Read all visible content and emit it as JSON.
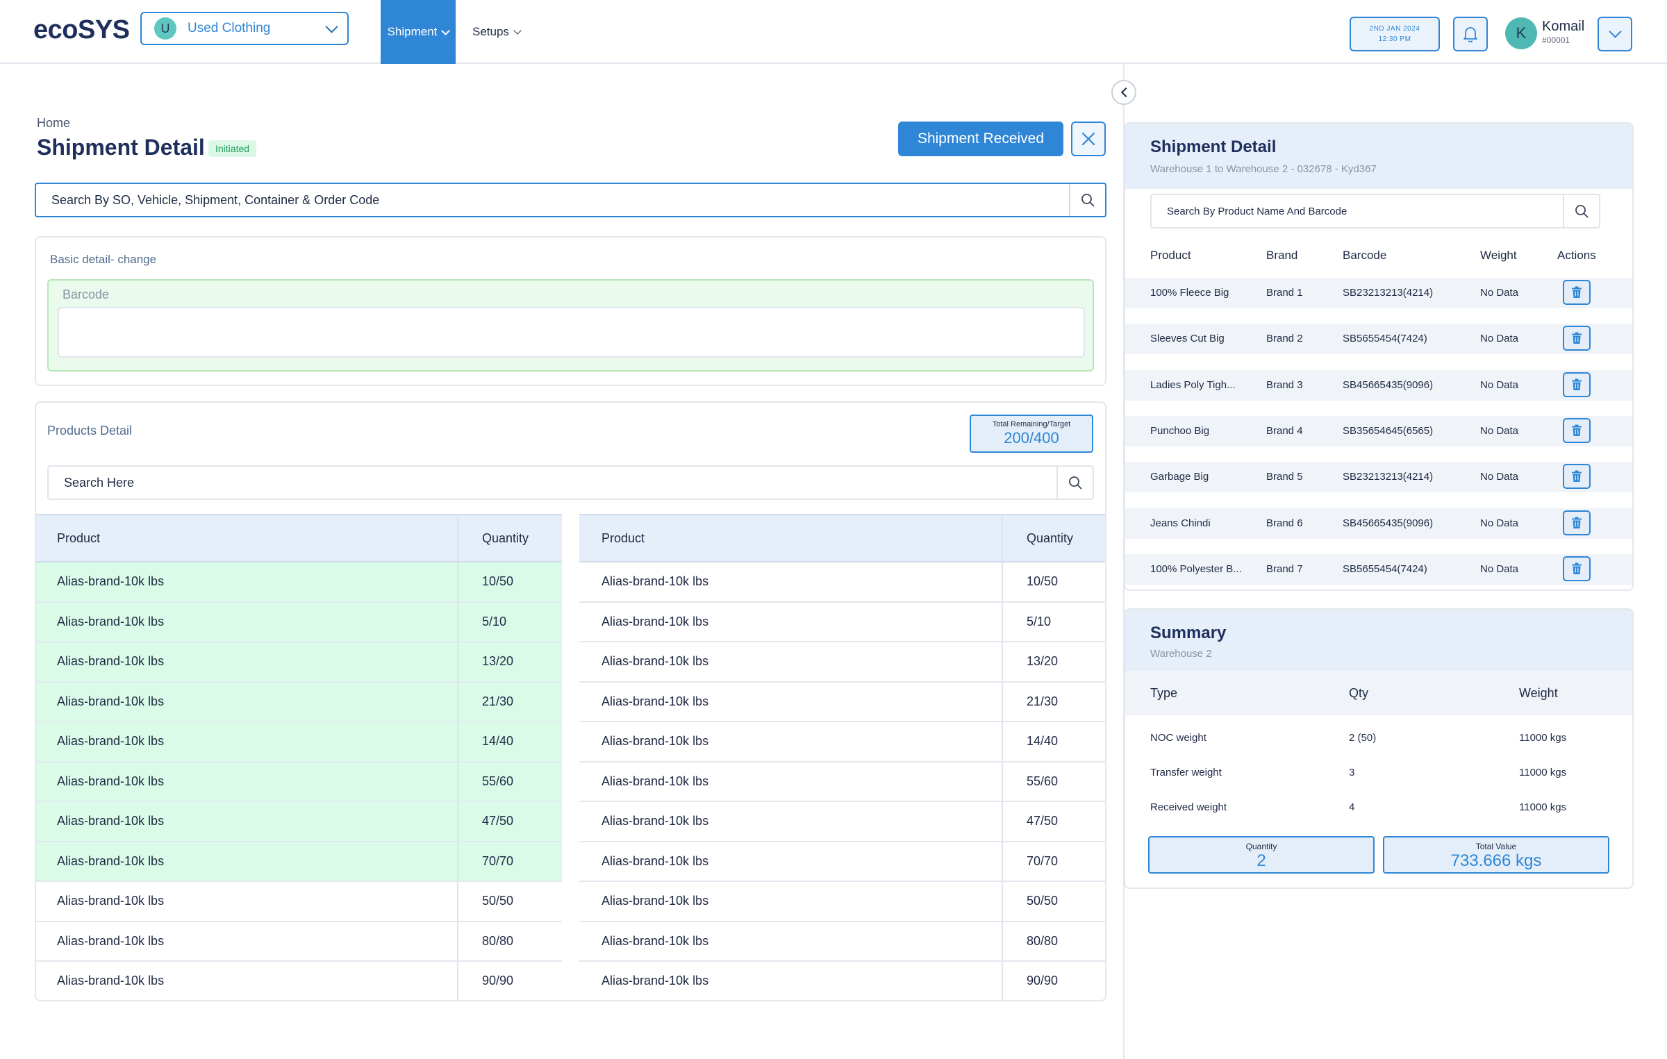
{
  "header": {
    "logo": "ecoSYS",
    "business": {
      "initial": "U",
      "label": "Used Clothing"
    },
    "nav": [
      {
        "label": "Shipment",
        "active": true
      },
      {
        "label": "Setups",
        "active": false
      }
    ],
    "date": "2ND JAN 2024",
    "time": "12:30 PM",
    "user": {
      "initial": "K",
      "name": "Komail",
      "id": "#00001"
    }
  },
  "page": {
    "breadcrumb": "Home",
    "title": "Shipment Detail",
    "status": "Initiated",
    "primary_action": "Shipment Received",
    "search_placeholder": "Search By SO, Vehicle, Shipment, Container & Order Code"
  },
  "basic": {
    "header": "Basic detail- change",
    "barcode_label": "Barcode",
    "barcode_value": ""
  },
  "products": {
    "header": "Products Detail",
    "target_label": "Total Remaining/Target",
    "target_value": "200/400",
    "search_placeholder": "Search Here",
    "columns": [
      "Product",
      "Quantity"
    ],
    "left_rows": [
      {
        "product": "Alias-brand-10k lbs",
        "qty": "10/50",
        "highlight": true
      },
      {
        "product": "Alias-brand-10k lbs",
        "qty": "5/10",
        "highlight": true
      },
      {
        "product": "Alias-brand-10k lbs",
        "qty": "13/20",
        "highlight": true
      },
      {
        "product": "Alias-brand-10k lbs",
        "qty": "21/30",
        "highlight": true
      },
      {
        "product": "Alias-brand-10k lbs",
        "qty": "14/40",
        "highlight": true
      },
      {
        "product": "Alias-brand-10k lbs",
        "qty": "55/60",
        "highlight": true
      },
      {
        "product": "Alias-brand-10k lbs",
        "qty": "47/50",
        "highlight": true
      },
      {
        "product": "Alias-brand-10k lbs",
        "qty": "70/70",
        "highlight": true
      },
      {
        "product": "Alias-brand-10k lbs",
        "qty": "50/50",
        "highlight": false
      },
      {
        "product": "Alias-brand-10k lbs",
        "qty": "80/80",
        "highlight": false
      },
      {
        "product": "Alias-brand-10k lbs",
        "qty": "90/90",
        "highlight": false
      }
    ],
    "right_rows": [
      {
        "product": "Alias-brand-10k lbs",
        "qty": "10/50"
      },
      {
        "product": "Alias-brand-10k lbs",
        "qty": "5/10"
      },
      {
        "product": "Alias-brand-10k lbs",
        "qty": "13/20"
      },
      {
        "product": "Alias-brand-10k lbs",
        "qty": "21/30"
      },
      {
        "product": "Alias-brand-10k lbs",
        "qty": "14/40"
      },
      {
        "product": "Alias-brand-10k lbs",
        "qty": "55/60"
      },
      {
        "product": "Alias-brand-10k lbs",
        "qty": "47/50"
      },
      {
        "product": "Alias-brand-10k lbs",
        "qty": "70/70"
      },
      {
        "product": "Alias-brand-10k lbs",
        "qty": "50/50"
      },
      {
        "product": "Alias-brand-10k lbs",
        "qty": "80/80"
      },
      {
        "product": "Alias-brand-10k lbs",
        "qty": "90/90"
      }
    ]
  },
  "shipment_panel": {
    "title": "Shipment Detail",
    "subtitle": "Warehouse 1 to Warehouse 2 - 032678 - Kyd367",
    "search_placeholder": "Search By Product Name And Barcode",
    "columns": [
      "Product",
      "Brand",
      "Barcode",
      "Weight",
      "Actions"
    ],
    "rows": [
      {
        "product": "100% Fleece Big",
        "brand": "Brand 1",
        "barcode": "SB23213213(4214)",
        "weight": "No Data"
      },
      {
        "product": "Sleeves Cut Big",
        "brand": "Brand 2",
        "barcode": "SB5655454(7424)",
        "weight": "No Data"
      },
      {
        "product": "Ladies Poly Tigh...",
        "brand": "Brand 3",
        "barcode": "SB45665435(9096)",
        "weight": "No Data"
      },
      {
        "product": "Punchoo Big",
        "brand": "Brand 4",
        "barcode": "SB35654645(6565)",
        "weight": "No Data"
      },
      {
        "product": "Garbage Big",
        "brand": "Brand 5",
        "barcode": "SB23213213(4214)",
        "weight": "No Data"
      },
      {
        "product": "Jeans Chindi",
        "brand": "Brand 6",
        "barcode": "SB45665435(9096)",
        "weight": "No Data"
      },
      {
        "product": "100% Polyester B...",
        "brand": "Brand 7",
        "barcode": "SB5655454(7424)",
        "weight": "No Data"
      }
    ]
  },
  "summary": {
    "title": "Summary",
    "subtitle": "Warehouse 2",
    "columns": [
      "Type",
      "Qty",
      "Weight"
    ],
    "rows": [
      {
        "type": "NOC weight",
        "qty": "2 (50)",
        "weight": "11000 kgs"
      },
      {
        "type": "Transfer weight",
        "qty": "3",
        "weight": "11000 kgs"
      },
      {
        "type": "Received weight",
        "qty": "4",
        "weight": "11000 kgs"
      }
    ],
    "quantity_label": "Quantity",
    "quantity_value": "2",
    "total_label": "Total Value",
    "total_value": "733.666 kgs"
  },
  "colors": {
    "accent": "#2f86d6",
    "highlight_row": "#dafbe8",
    "status_green": "#1f9e5a"
  },
  "icons": [
    "chevron-down-icon",
    "bell-icon",
    "close-icon",
    "search-icon",
    "scan-icon",
    "chevron-left-icon",
    "trash-icon"
  ]
}
